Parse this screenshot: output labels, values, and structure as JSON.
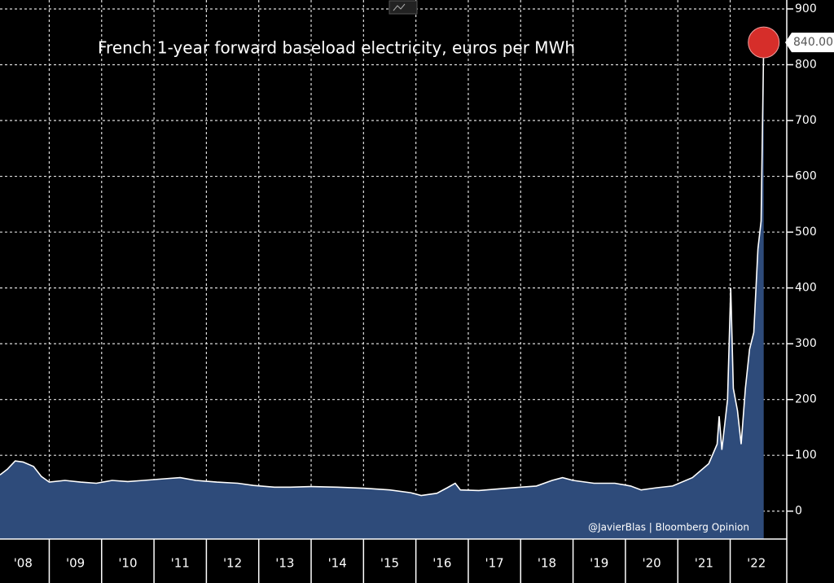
{
  "chart_data": {
    "type": "area",
    "title": "French 1-year forward baseload electricity, euros per MWh",
    "source": "@JavierBlas | Bloomberg Opinion",
    "series": [
      {
        "color": "#2e4b7a",
        "line_color": "#ffffff",
        "x": [
          2008.06,
          2008.2,
          2008.35,
          2008.5,
          2008.7,
          2008.85,
          2009.0,
          2009.3,
          2009.6,
          2009.9,
          2010.2,
          2010.5,
          2010.8,
          2011.2,
          2011.5,
          2011.8,
          2012.2,
          2012.6,
          2012.9,
          2013.3,
          2013.6,
          2014.0,
          2014.5,
          2015.0,
          2015.5,
          2015.9,
          2016.1,
          2016.4,
          2016.6,
          2016.75,
          2016.85,
          2017.2,
          2017.6,
          2018.0,
          2018.3,
          2018.6,
          2018.8,
          2019.0,
          2019.4,
          2019.8,
          2020.1,
          2020.3,
          2020.6,
          2020.9,
          2021.28,
          2021.59,
          2021.75,
          2021.79,
          2021.84,
          2021.95,
          2022.01,
          2022.06,
          2022.14,
          2022.21,
          2022.29,
          2022.37,
          2022.45,
          2022.53,
          2022.59,
          2022.64
        ],
        "values": [
          65,
          75,
          90,
          88,
          80,
          62,
          52,
          55,
          52,
          50,
          55,
          53,
          55,
          58,
          60,
          55,
          52,
          50,
          46,
          43,
          43,
          44,
          43,
          41,
          38,
          33,
          28,
          32,
          42,
          50,
          38,
          37,
          40,
          43,
          45,
          55,
          60,
          55,
          50,
          50,
          45,
          38,
          42,
          45,
          60,
          85,
          120,
          170,
          110,
          200,
          400,
          220,
          180,
          120,
          220,
          290,
          320,
          470,
          520,
          840
        ]
      }
    ],
    "last_point": {
      "value": 840,
      "label": "840.00",
      "color": "#d62e2a"
    },
    "xlim": [
      2008.06,
      2023.08
    ],
    "xgrid": [
      2009,
      2010,
      2011,
      2012,
      2013,
      2014,
      2015,
      2016,
      2017,
      2018,
      2019,
      2020,
      2021,
      2022
    ],
    "xticks": [
      {
        "value": 2008.5,
        "label": "'08"
      },
      {
        "value": 2009.5,
        "label": "'09"
      },
      {
        "value": 2010.5,
        "label": "'10"
      },
      {
        "value": 2011.5,
        "label": "'11"
      },
      {
        "value": 2012.5,
        "label": "'12"
      },
      {
        "value": 2013.5,
        "label": "'13"
      },
      {
        "value": 2014.5,
        "label": "'14"
      },
      {
        "value": 2015.5,
        "label": "'15"
      },
      {
        "value": 2016.5,
        "label": "'16"
      },
      {
        "value": 2017.5,
        "label": "'17"
      },
      {
        "value": 2018.5,
        "label": "'18"
      },
      {
        "value": 2019.5,
        "label": "'19"
      },
      {
        "value": 2020.5,
        "label": "'20"
      },
      {
        "value": 2021.5,
        "label": "'21"
      },
      {
        "value": 2022.5,
        "label": "'22"
      }
    ],
    "ylim": [
      -50,
      916
    ],
    "yticks": [
      0,
      100,
      200,
      300,
      400,
      500,
      600,
      700,
      800,
      900
    ],
    "grid": true
  }
}
